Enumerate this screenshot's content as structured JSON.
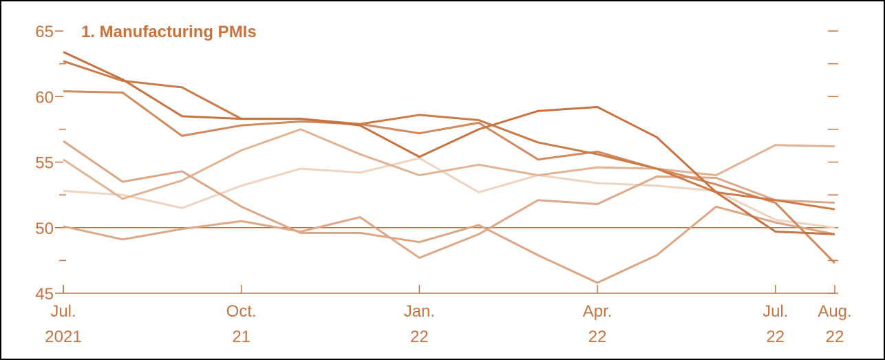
{
  "chart_data": {
    "type": "line",
    "title": "1. Manufacturing PMIs",
    "categories": [
      [
        "Jul.",
        "2021"
      ],
      null,
      null,
      [
        "Oct.",
        "21"
      ],
      null,
      null,
      [
        "Jan.",
        "22"
      ],
      null,
      null,
      [
        "Apr.",
        "22"
      ],
      null,
      null,
      [
        "Jul.",
        "22"
      ],
      [
        "Aug.",
        "22"
      ]
    ],
    "ylim": [
      45,
      65
    ],
    "yticks": [
      45,
      50,
      55,
      60,
      65
    ],
    "yminor_ticks": [
      47.5,
      52.5,
      57.5,
      62.5
    ],
    "reference_line": 50,
    "series": [
      {
        "color": "#c8733f",
        "values": [
          63.4,
          61.3,
          58.5,
          58.3,
          58.3,
          57.8,
          55.4,
          57.5,
          58.9,
          59.2,
          56.9,
          52.7,
          49.7,
          49.5
        ]
      },
      {
        "color": "#cb7a48",
        "values": [
          62.7,
          61.2,
          60.7,
          58.3,
          58.3,
          57.9,
          58.6,
          58.2,
          56.5,
          55.6,
          54.5,
          52.7,
          52.1,
          51.4
        ]
      },
      {
        "color": "#d08a5d",
        "values": [
          60.4,
          60.3,
          57.0,
          57.8,
          58.1,
          57.9,
          57.2,
          58.0,
          55.2,
          55.8,
          54.5,
          53.3,
          51.9,
          47.3
        ]
      },
      {
        "color": "#dca584",
        "values": [
          56.6,
          53.5,
          54.3,
          51.6,
          49.6,
          49.6,
          48.9,
          50.2,
          47.9,
          45.8,
          47.9,
          51.6,
          50.4,
          49.5
        ]
      },
      {
        "color": "#e1b294",
        "values": [
          55.2,
          52.2,
          53.6,
          55.9,
          57.5,
          55.6,
          54.0,
          54.8,
          54.0,
          54.6,
          54.5,
          54.0,
          56.3,
          56.2
        ]
      },
      {
        "color": "#dda789",
        "values": [
          50.1,
          49.1,
          49.9,
          50.5,
          49.7,
          50.8,
          47.7,
          49.5,
          52.1,
          51.8,
          53.9,
          53.8,
          52.1,
          51.9
        ]
      },
      {
        "color": "#efd3c0",
        "values": [
          52.8,
          52.5,
          51.5,
          53.2,
          54.5,
          54.2,
          55.3,
          52.7,
          54.0,
          53.4,
          53.2,
          52.8,
          50.6,
          50.0
        ]
      }
    ]
  }
}
